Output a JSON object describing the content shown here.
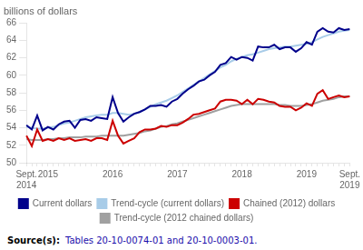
{
  "chart_data": {
    "type": "line",
    "ylabel": "billions of dollars",
    "categories": [
      "Sept.\n2014",
      null,
      null,
      null,
      "2015",
      null,
      null,
      null,
      null,
      null,
      null,
      null,
      null,
      null,
      null,
      null,
      "2016",
      null,
      null,
      null,
      null,
      null,
      null,
      null,
      null,
      null,
      null,
      null,
      "2017",
      null,
      null,
      null,
      null,
      null,
      null,
      null,
      null,
      null,
      null,
      null,
      "2018",
      null,
      null,
      null,
      null,
      null,
      null,
      null,
      null,
      null,
      null,
      null,
      "2019",
      null,
      null,
      null,
      null,
      null,
      null,
      null,
      "Sept.\n2019"
    ],
    "series": [
      {
        "name": "Current dollars",
        "color": "#00008B",
        "values": [
          54.3,
          53.8,
          55.4,
          53.7,
          54.1,
          53.8,
          54.4,
          54.7,
          54.8,
          54.0,
          54.9,
          55.0,
          54.8,
          55.2,
          55.1,
          55.0,
          57.5,
          55.7,
          54.7,
          55.2,
          55.6,
          55.8,
          56.1,
          56.5,
          56.5,
          56.6,
          56.4,
          57.0,
          57.3,
          57.9,
          58.4,
          58.8,
          59.3,
          59.5,
          60.0,
          60.4,
          61.2,
          61.4,
          62.1,
          61.8,
          62.1,
          62.0,
          61.7,
          63.3,
          63.2,
          63.2,
          63.5,
          63.0,
          63.2,
          63.2,
          62.7,
          63.1,
          63.8,
          63.5,
          65.0,
          65.4,
          65.0,
          64.9,
          65.4,
          65.2,
          65.3
        ]
      },
      {
        "name": "Trend-cycle (current dollars)",
        "color": "#a8cce8",
        "values": [
          54.1,
          54.0,
          53.9,
          53.9,
          54.0,
          54.1,
          54.3,
          54.5,
          54.6,
          54.8,
          55.0,
          55.2,
          55.3,
          55.4,
          55.5,
          55.5,
          55.7,
          55.7,
          55.6,
          55.5,
          55.6,
          55.8,
          56.1,
          56.4,
          56.7,
          56.9,
          57.1,
          57.4,
          57.7,
          58.1,
          58.5,
          58.9,
          59.3,
          59.7,
          60.1,
          60.5,
          60.9,
          61.2,
          61.6,
          61.9,
          62.1,
          62.3,
          62.4,
          62.6,
          62.8,
          63.0,
          63.1,
          63.2,
          63.3,
          63.3,
          63.4,
          63.5,
          63.6,
          63.8,
          64.1,
          64.4,
          64.6,
          64.8,
          65.0,
          65.1,
          65.2
        ]
      },
      {
        "name": "Chained (2012) dollars",
        "color": "#cc0000",
        "values": [
          53.1,
          51.9,
          53.8,
          52.5,
          52.7,
          52.5,
          52.8,
          52.6,
          52.8,
          52.5,
          52.6,
          52.7,
          52.5,
          52.8,
          52.8,
          52.6,
          54.8,
          53.1,
          52.2,
          52.5,
          52.8,
          53.5,
          53.8,
          53.8,
          53.9,
          54.2,
          54.1,
          54.3,
          54.3,
          54.6,
          55.0,
          55.5,
          55.6,
          55.8,
          56.0,
          56.2,
          57.0,
          57.2,
          57.2,
          57.1,
          56.7,
          57.2,
          56.7,
          57.3,
          57.2,
          57.0,
          56.9,
          56.5,
          56.4,
          56.4,
          56.0,
          56.3,
          56.8,
          56.5,
          57.9,
          58.3,
          57.3,
          57.5,
          57.7,
          57.5,
          57.6
        ]
      },
      {
        "name": "Trend-cycle (2012 chained dollars)",
        "color": "#a0a0a0",
        "values": [
          52.7,
          52.6,
          52.6,
          52.6,
          52.7,
          52.7,
          52.8,
          52.8,
          52.9,
          52.9,
          52.9,
          53.0,
          53.0,
          53.0,
          53.1,
          53.1,
          53.1,
          53.1,
          53.1,
          53.2,
          53.3,
          53.4,
          53.6,
          53.7,
          53.9,
          54.1,
          54.2,
          54.4,
          54.5,
          54.7,
          54.9,
          55.1,
          55.3,
          55.5,
          55.7,
          55.9,
          56.1,
          56.3,
          56.5,
          56.6,
          56.7,
          56.7,
          56.7,
          56.7,
          56.7,
          56.7,
          56.7,
          56.6,
          56.6,
          56.5,
          56.5,
          56.5,
          56.6,
          56.7,
          56.9,
          57.1,
          57.2,
          57.3,
          57.5,
          57.6,
          57.6
        ]
      }
    ],
    "ylim": [
      50,
      66
    ],
    "yticks": [
      50,
      52,
      54,
      56,
      58,
      60,
      62,
      64,
      66
    ],
    "grid": false,
    "legend": "bottom",
    "annotations": [
      "Source(s):",
      "Tables 20-10-0074-01 and 20-10-0003-01."
    ]
  }
}
